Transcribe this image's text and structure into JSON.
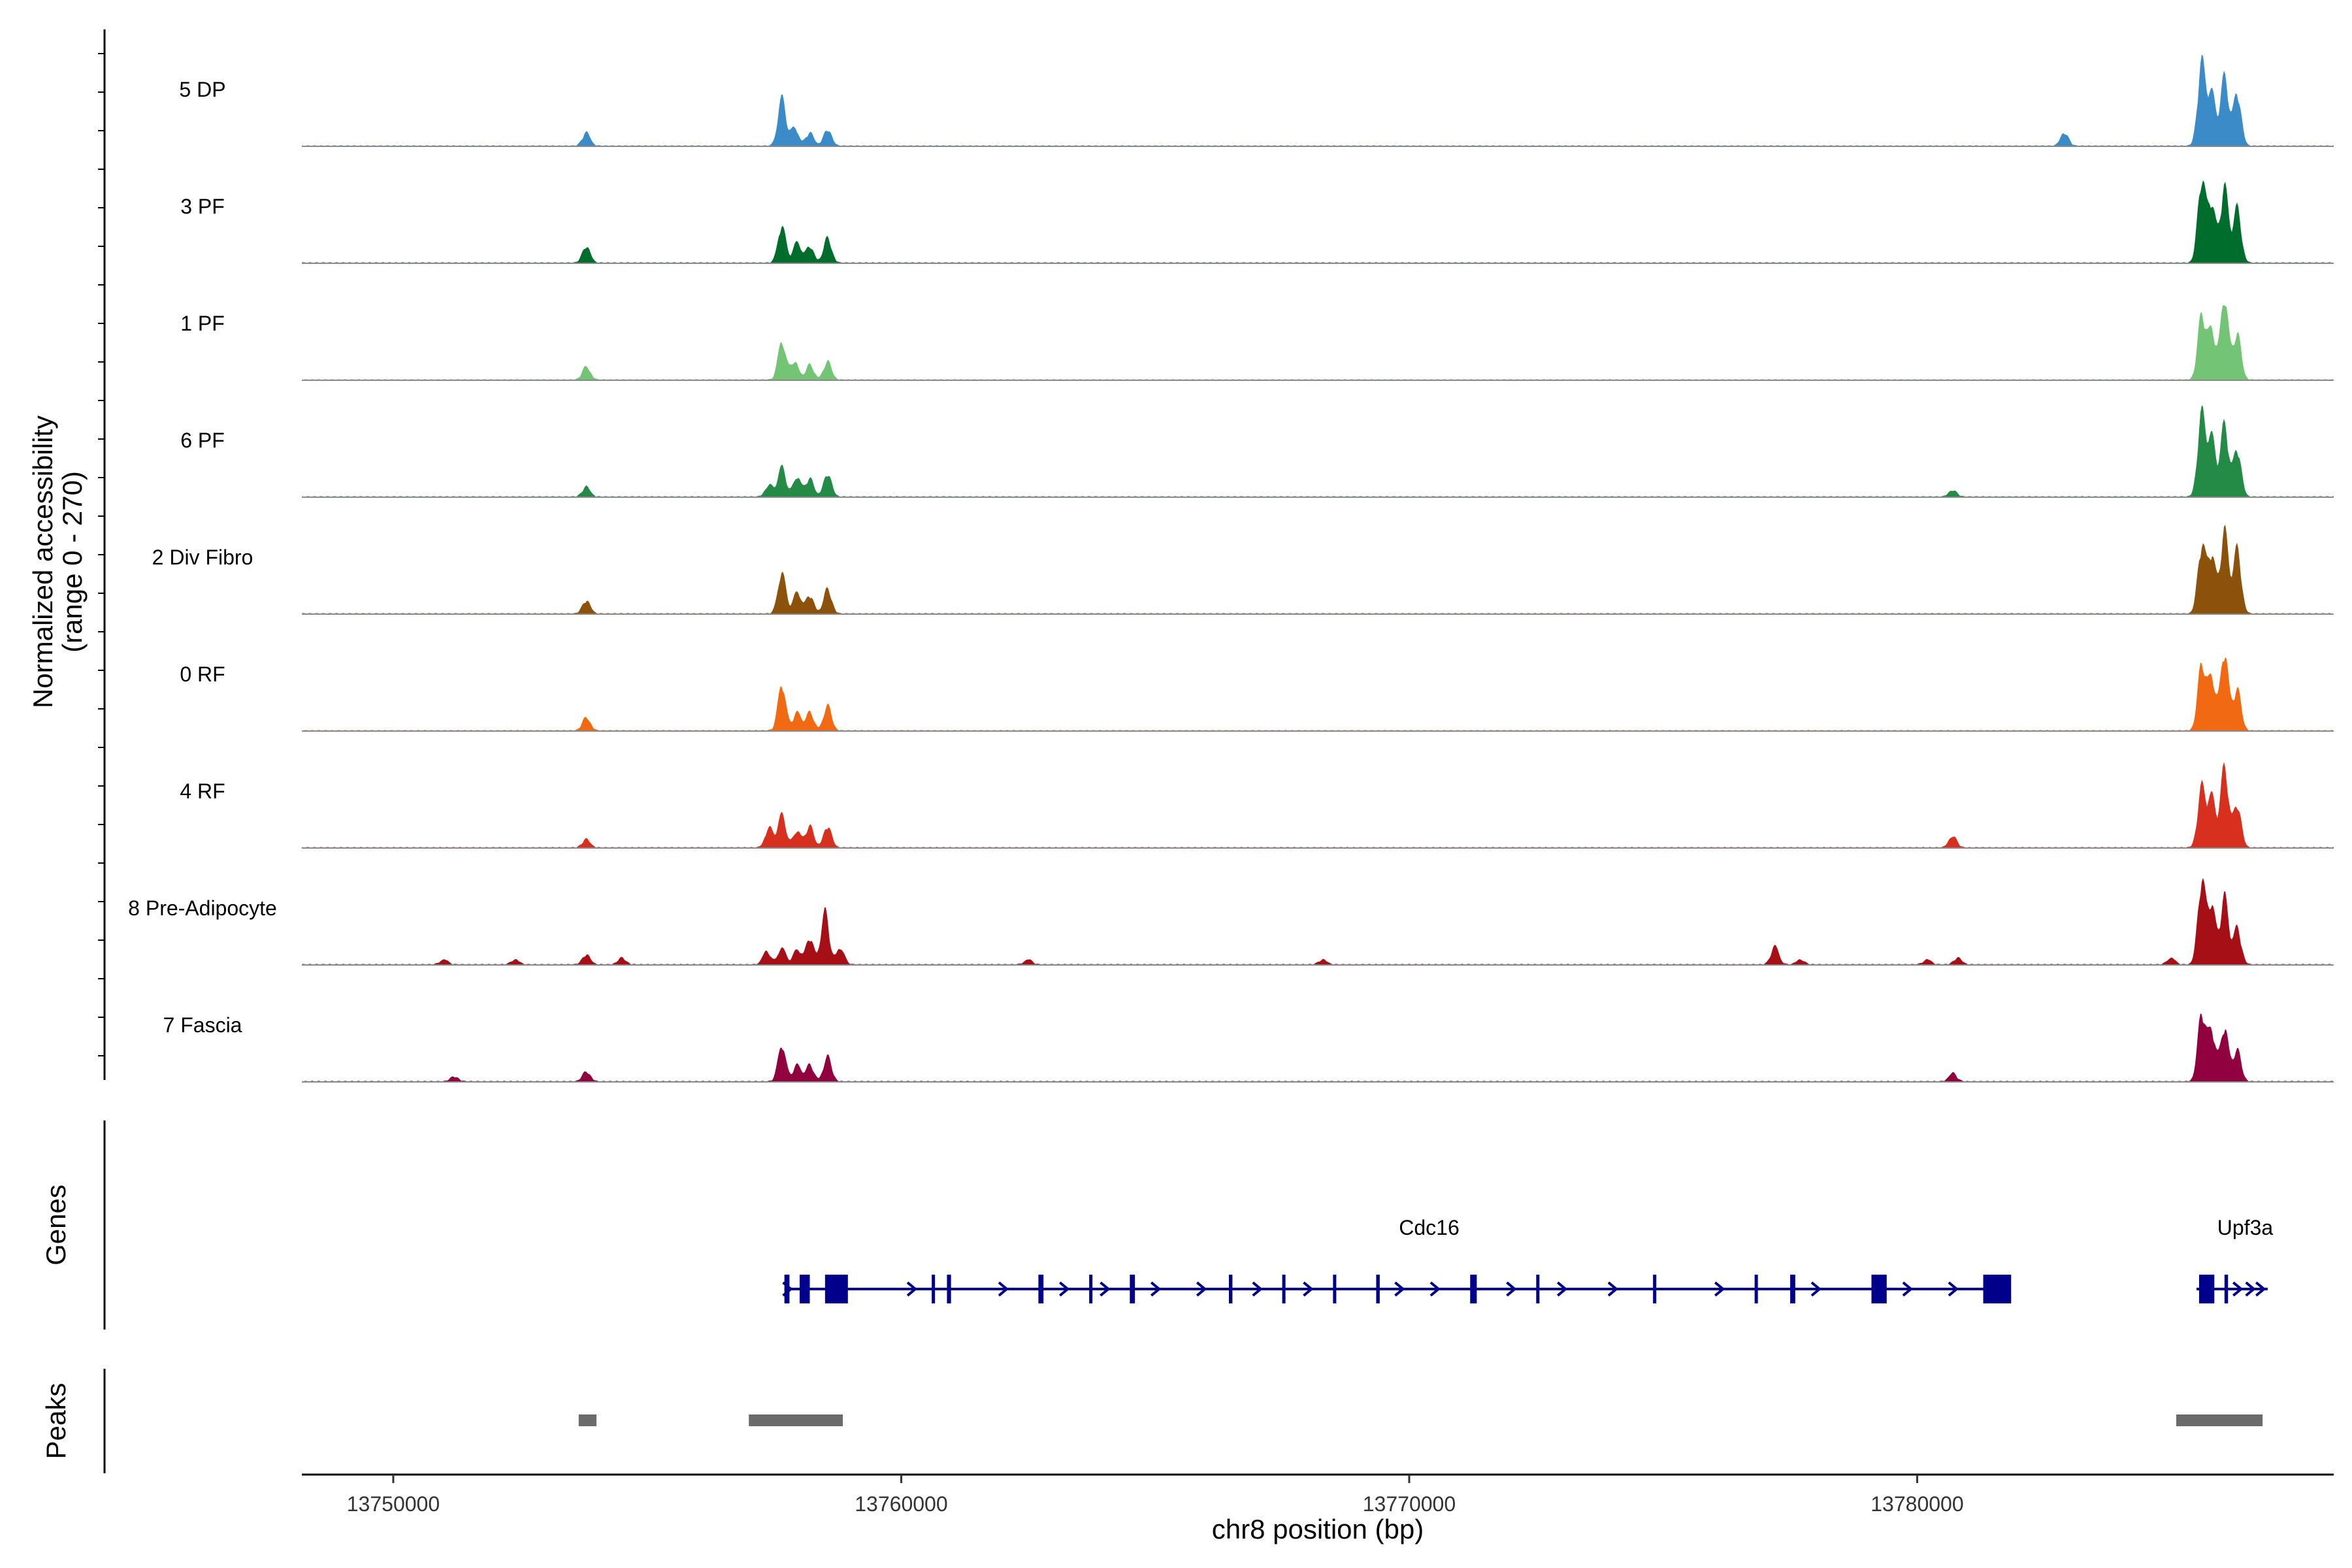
{
  "chart_data": {
    "type": "area",
    "title": "",
    "ylabel_line1": "Normalized accessibility",
    "ylabel_line2": "(range 0 - 270)",
    "y_range": [
      0,
      270
    ],
    "xlabel": "chr8 position (bp)",
    "x_range": [
      13748200,
      13788200
    ],
    "x_ticks": [
      13750000,
      13760000,
      13770000,
      13780000
    ],
    "x_tick_labels": [
      "13750000",
      "13760000",
      "13770000",
      "13780000"
    ],
    "genes_panel_label": "Genes",
    "peaks_panel_label": "Peaks",
    "tracks": [
      {
        "name": "5 DP",
        "color": "#3A8BC7",
        "peaks": [
          [
            13753800,
            0.16
          ],
          [
            13757650,
            0.58
          ],
          [
            13757900,
            0.22
          ],
          [
            13758200,
            0.16
          ],
          [
            13758550,
            0.2
          ],
          [
            13782900,
            0.16
          ],
          [
            13785600,
            1.0
          ],
          [
            13785800,
            0.62
          ],
          [
            13786050,
            0.84
          ],
          [
            13786300,
            0.64
          ]
        ]
      },
      {
        "name": "3 PF",
        "color": "#006D2C",
        "peaks": [
          [
            13753800,
            0.2
          ],
          [
            13757650,
            0.45
          ],
          [
            13757950,
            0.25
          ],
          [
            13758200,
            0.2
          ],
          [
            13758550,
            0.3
          ],
          [
            13785600,
            1.0
          ],
          [
            13785800,
            0.7
          ],
          [
            13786050,
            0.92
          ],
          [
            13786300,
            0.66
          ]
        ]
      },
      {
        "name": "1 PF",
        "color": "#74C476",
        "peaks": [
          [
            13753800,
            0.16
          ],
          [
            13757650,
            0.46
          ],
          [
            13757900,
            0.22
          ],
          [
            13758200,
            0.18
          ],
          [
            13758550,
            0.22
          ],
          [
            13785600,
            0.78
          ],
          [
            13785800,
            0.58
          ],
          [
            13786050,
            1.0
          ],
          [
            13786300,
            0.56
          ]
        ]
      },
      {
        "name": "6 PF",
        "color": "#238B45",
        "peaks": [
          [
            13753800,
            0.12
          ],
          [
            13757400,
            0.14
          ],
          [
            13757650,
            0.36
          ],
          [
            13757950,
            0.24
          ],
          [
            13758200,
            0.22
          ],
          [
            13758550,
            0.28
          ],
          [
            13780700,
            0.08
          ],
          [
            13785600,
            1.0
          ],
          [
            13785800,
            0.7
          ],
          [
            13786050,
            0.88
          ],
          [
            13786300,
            0.58
          ]
        ]
      },
      {
        "name": "2 Div Fibro",
        "color": "#8C510A",
        "peaks": [
          [
            13753800,
            0.16
          ],
          [
            13757650,
            0.5
          ],
          [
            13757950,
            0.26
          ],
          [
            13758200,
            0.22
          ],
          [
            13758550,
            0.3
          ],
          [
            13785600,
            0.82
          ],
          [
            13785800,
            0.7
          ],
          [
            13786050,
            1.0
          ],
          [
            13786300,
            0.78
          ]
        ]
      },
      {
        "name": "0 RF",
        "color": "#F16913",
        "peaks": [
          [
            13753800,
            0.16
          ],
          [
            13757650,
            0.56
          ],
          [
            13757950,
            0.22
          ],
          [
            13758200,
            0.22
          ],
          [
            13758550,
            0.3
          ],
          [
            13785600,
            0.8
          ],
          [
            13785800,
            0.62
          ],
          [
            13786050,
            0.96
          ],
          [
            13786300,
            0.5
          ]
        ]
      },
      {
        "name": "4 RF",
        "color": "#D7301F",
        "peaks": [
          [
            13753800,
            0.1
          ],
          [
            13757400,
            0.24
          ],
          [
            13757650,
            0.4
          ],
          [
            13757950,
            0.2
          ],
          [
            13758200,
            0.26
          ],
          [
            13758550,
            0.26
          ],
          [
            13780700,
            0.14
          ],
          [
            13785600,
            0.72
          ],
          [
            13785800,
            0.6
          ],
          [
            13786050,
            0.98
          ],
          [
            13786300,
            0.52
          ]
        ]
      },
      {
        "name": "8 Pre-Adipocyte",
        "color": "#A50F15",
        "peaks": [
          [
            13751000,
            0.06
          ],
          [
            13752400,
            0.06
          ],
          [
            13753800,
            0.12
          ],
          [
            13754500,
            0.08
          ],
          [
            13757350,
            0.16
          ],
          [
            13757650,
            0.2
          ],
          [
            13757950,
            0.18
          ],
          [
            13758200,
            0.32
          ],
          [
            13758500,
            0.64
          ],
          [
            13758800,
            0.2
          ],
          [
            13762500,
            0.06
          ],
          [
            13768300,
            0.06
          ],
          [
            13777200,
            0.22
          ],
          [
            13777700,
            0.06
          ],
          [
            13780200,
            0.06
          ],
          [
            13780800,
            0.08
          ],
          [
            13785000,
            0.08
          ],
          [
            13785600,
            1.0
          ],
          [
            13785800,
            0.7
          ],
          [
            13786050,
            0.82
          ],
          [
            13786300,
            0.44
          ]
        ]
      },
      {
        "name": "7 Fascia",
        "color": "#91003F",
        "peaks": [
          [
            13751200,
            0.06
          ],
          [
            13753800,
            0.12
          ],
          [
            13757650,
            0.44
          ],
          [
            13757950,
            0.2
          ],
          [
            13758200,
            0.2
          ],
          [
            13758550,
            0.3
          ],
          [
            13780700,
            0.1
          ],
          [
            13785600,
            0.82
          ],
          [
            13785800,
            0.6
          ],
          [
            13786050,
            0.66
          ],
          [
            13786300,
            0.38
          ]
        ]
      }
    ],
    "genes": [
      {
        "name": "Cdc16",
        "start": 13757700,
        "end": 13781800,
        "strand": "+",
        "color": "#00008B",
        "exons": [
          [
            13757700,
            13757800
          ],
          [
            13758000,
            13758200
          ],
          [
            13758500,
            13758950
          ],
          [
            13760600,
            13760650
          ],
          [
            13760900,
            13760980
          ],
          [
            13762700,
            13762800
          ],
          [
            13763700,
            13763760
          ],
          [
            13764500,
            13764600
          ],
          [
            13766450,
            13766520
          ],
          [
            13767500,
            13767540
          ],
          [
            13768500,
            13768560
          ],
          [
            13769350,
            13769420
          ],
          [
            13771200,
            13771330
          ],
          [
            13772500,
            13772540
          ],
          [
            13774800,
            13774850
          ],
          [
            13776800,
            13776850
          ],
          [
            13777500,
            13777600
          ],
          [
            13779100,
            13779400
          ],
          [
            13781300,
            13781850
          ]
        ],
        "arrows": [
          13757750,
          13760200,
          13762000,
          13763200,
          13764000,
          13765000,
          13765900,
          13767000,
          13768000,
          13769800,
          13770500,
          13772000,
          13773000,
          13774000,
          13776100,
          13778000,
          13779800,
          13780700
        ]
      },
      {
        "name": "Upf3a",
        "start": 13785500,
        "end": 13786900,
        "strand": "+",
        "color": "#00008B",
        "exons": [
          [
            13785550,
            13785850
          ],
          [
            13786050,
            13786120
          ]
        ],
        "arrows": [
          13786300,
          13786550,
          13786750
        ]
      }
    ],
    "peaks": [
      [
        13753650,
        13754000
      ],
      [
        13757000,
        13758850
      ],
      [
        13785100,
        13786800
      ]
    ]
  }
}
